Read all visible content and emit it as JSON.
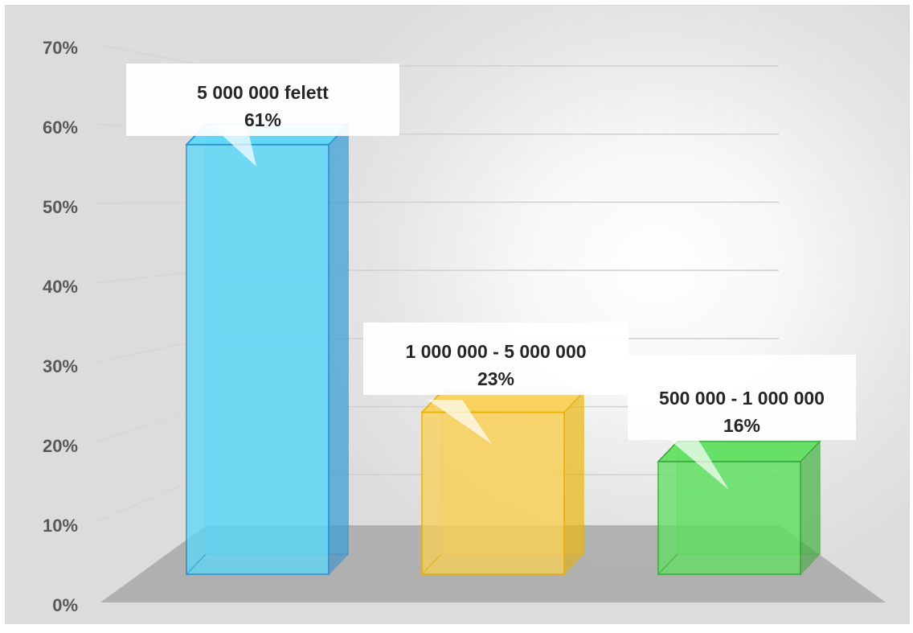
{
  "chart_data": {
    "type": "bar",
    "style": "3d-clustered-column",
    "title": "",
    "xlabel": "",
    "ylabel": "",
    "ylim": [
      0,
      0.7
    ],
    "y_ticks": [
      "0%",
      "10%",
      "20%",
      "30%",
      "40%",
      "50%",
      "60%",
      "70%"
    ],
    "grid": true,
    "legend": "none",
    "categories": [
      "5 000 000 felett",
      "1 000 000 - 5 000 000",
      "500 000 - 1 000 000"
    ],
    "values": [
      0.61,
      0.23,
      0.16
    ],
    "value_labels": [
      "61%",
      "23%",
      "16%"
    ],
    "colors": [
      "#5ad8f8",
      "#fad055",
      "#5ee05e"
    ],
    "edge_colors": [
      "#2a8fd0",
      "#e8b200",
      "#3aa83a"
    ]
  }
}
